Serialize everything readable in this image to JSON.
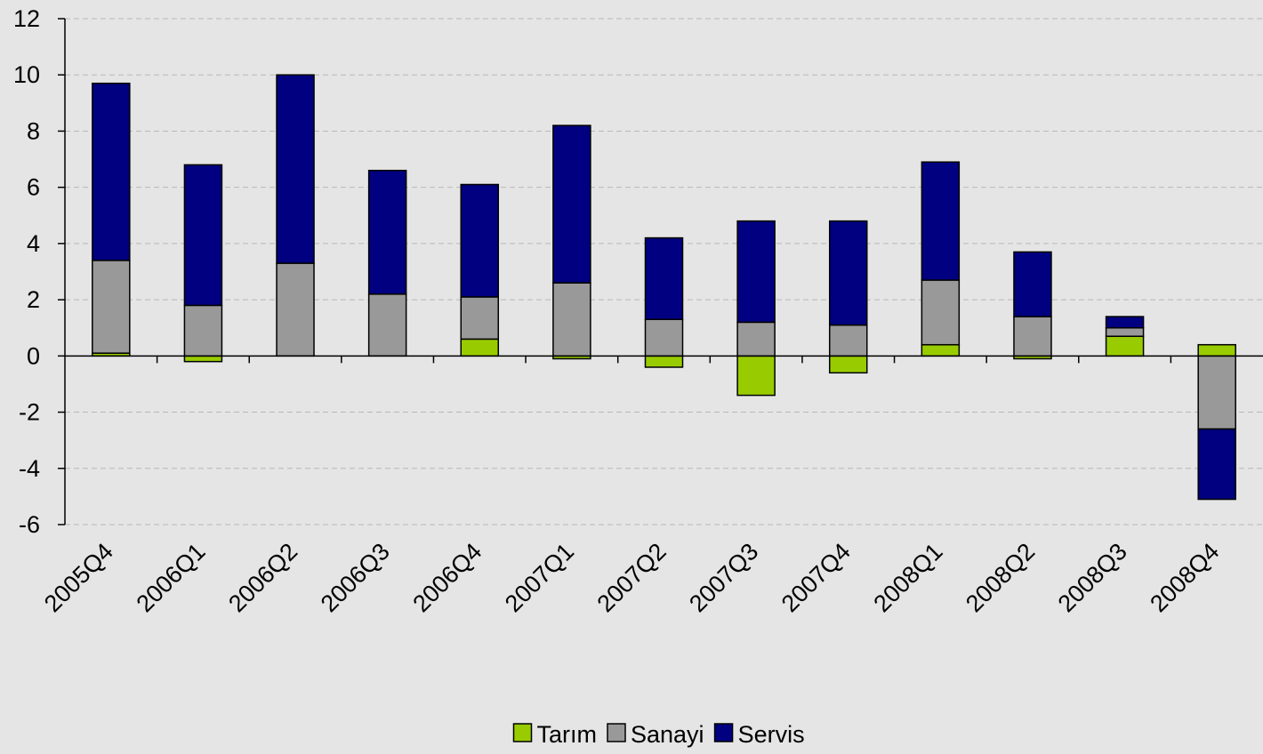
{
  "chart_data": {
    "type": "stacked_bar",
    "categories": [
      "2005Q4",
      "2006Q1",
      "2006Q2",
      "2006Q3",
      "2006Q4",
      "2007Q1",
      "2007Q2",
      "2007Q3",
      "2007Q4",
      "2008Q1",
      "2008Q2",
      "2008Q3",
      "2008Q4"
    ],
    "series": [
      {
        "name": "Tarım",
        "color": "#99cc00",
        "values": [
          0.1,
          -0.2,
          0,
          0,
          0.6,
          -0.1,
          -0.4,
          -1.4,
          -0.6,
          0.4,
          -0.1,
          0.7,
          0.4
        ]
      },
      {
        "name": "Sanayi",
        "color": "#999999",
        "values": [
          3.3,
          1.8,
          3.3,
          2.2,
          1.5,
          2.6,
          1.3,
          1.2,
          1.1,
          2.3,
          1.4,
          0.3,
          -2.6
        ]
      },
      {
        "name": "Servis",
        "color": "#000080",
        "values": [
          6.3,
          5.0,
          6.7,
          4.4,
          4.0,
          5.6,
          2.9,
          3.6,
          3.7,
          4.2,
          2.3,
          0.4,
          -2.5
        ]
      }
    ],
    "ylim": [
      -6,
      12
    ],
    "yticks": [
      -6,
      -4,
      -2,
      0,
      2,
      4,
      6,
      8,
      10,
      12
    ],
    "grid": true,
    "legend": "bottom"
  }
}
